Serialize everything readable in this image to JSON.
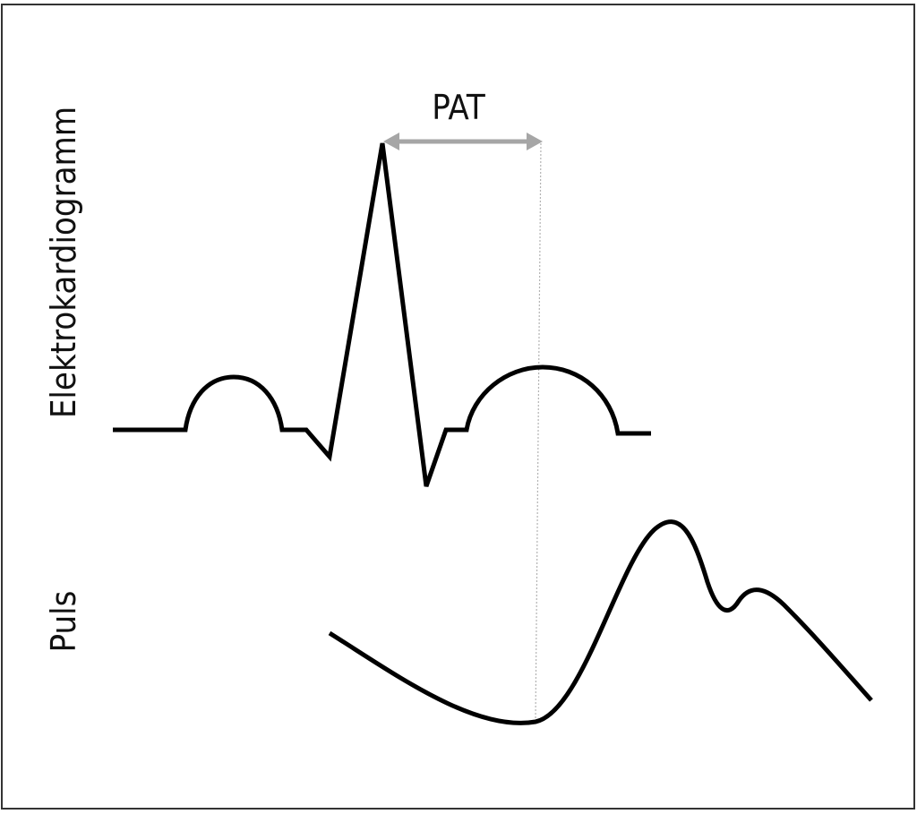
{
  "labels": {
    "ecg": "Elektrokardiogramm",
    "pulse": "Puls",
    "interval": "PAT"
  },
  "colors": {
    "waveform": "#000000",
    "arrow": "#a6a6a6",
    "guide": "#b3b3b3",
    "text": "#111111",
    "frame": "#333333",
    "background": "#ffffff"
  }
}
